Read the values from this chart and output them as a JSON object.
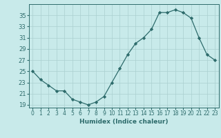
{
  "x": [
    0,
    1,
    2,
    3,
    4,
    5,
    6,
    7,
    8,
    9,
    10,
    11,
    12,
    13,
    14,
    15,
    16,
    17,
    18,
    19,
    20,
    21,
    22,
    23
  ],
  "y": [
    25,
    23.5,
    22.5,
    21.5,
    21.5,
    20,
    19.5,
    19,
    19.5,
    20.5,
    23,
    25.5,
    28,
    30,
    31,
    32.5,
    35.5,
    35.5,
    36,
    35.5,
    34.5,
    31,
    28,
    27
  ],
  "line_color": "#2d6b6b",
  "marker": "D",
  "marker_size": 2.2,
  "bg_color": "#c8eaea",
  "grid_color": "#aad0d0",
  "xlabel": "Humidex (Indice chaleur)",
  "yticks": [
    19,
    21,
    23,
    25,
    27,
    29,
    31,
    33,
    35
  ],
  "ylim": [
    18.5,
    37
  ],
  "xlim": [
    -0.5,
    23.5
  ],
  "tick_color": "#2d6b6b",
  "label_fontsize": 6,
  "xlabel_fontsize": 6.5,
  "figsize": [
    3.2,
    2.0
  ],
  "dpi": 100
}
